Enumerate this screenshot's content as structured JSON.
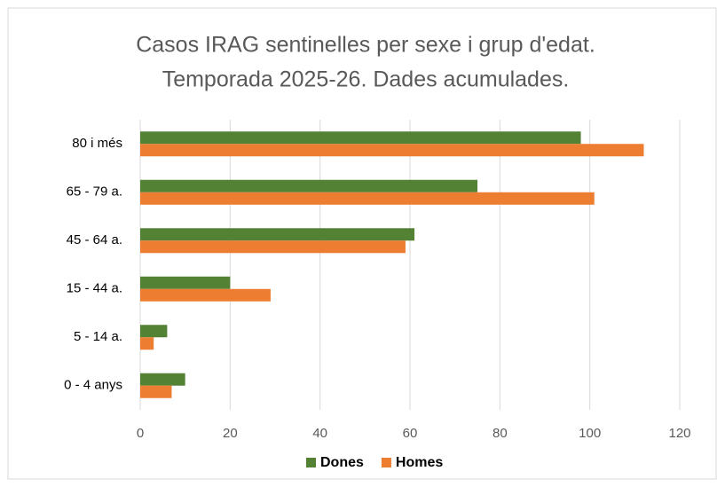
{
  "chart_data": {
    "type": "hbar",
    "title": [
      "Casos IRAG sentinelles per sexe i grup d'edat.",
      "Temporada 2025-26. Dades acumulades."
    ],
    "categories": [
      "80 i més",
      "65 - 79 a.",
      "45 - 64 a.",
      "15 - 44 a.",
      "5 - 14 a.",
      "0 - 4 anys"
    ],
    "series": [
      {
        "name": "Dones",
        "color": "#548235",
        "values": [
          98,
          75,
          61,
          20,
          6,
          10
        ]
      },
      {
        "name": "Homes",
        "color": "#ed7d31",
        "values": [
          112,
          101,
          59,
          29,
          3,
          7
        ]
      }
    ],
    "xlim": [
      0,
      120
    ],
    "xticks": [
      0,
      20,
      40,
      60,
      80,
      100,
      120
    ],
    "grid": true,
    "legend": "bottom"
  }
}
